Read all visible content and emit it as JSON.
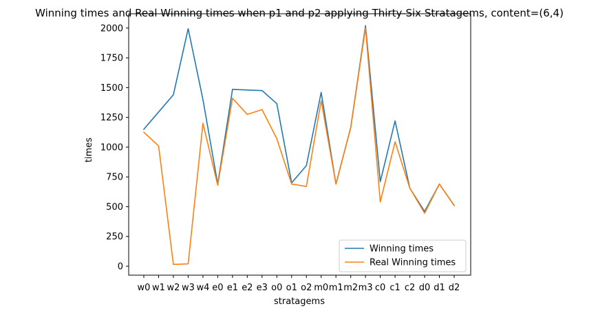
{
  "chart_data": {
    "type": "line",
    "title": "Winning times and Real Winning times when p1 and p2 applying Thirty-Six Stratagems, content=(6,4)",
    "xlabel": "stratagems",
    "ylabel": "times",
    "categories": [
      "w0",
      "w1",
      "w2",
      "w3",
      "w4",
      "e0",
      "e1",
      "e2",
      "e3",
      "o0",
      "o1",
      "o2",
      "m0",
      "m1",
      "m2",
      "m3",
      "c0",
      "c1",
      "c2",
      "d0",
      "d1",
      "d2"
    ],
    "yticks": [
      "0",
      "250",
      "500",
      "750",
      "1000",
      "1250",
      "1500",
      "1750",
      "2000"
    ],
    "ylim": [
      -75,
      2120
    ],
    "grid": false,
    "legend_position": "lower-right",
    "series": [
      {
        "name": "Winning times",
        "color": "#1f77b4",
        "values": [
          1150,
          1295,
          1440,
          1995,
          1400,
          690,
          1485,
          1480,
          1475,
          1365,
          700,
          845,
          1460,
          690,
          1165,
          2020,
          710,
          1220,
          655,
          460,
          690,
          510
        ]
      },
      {
        "name": "Real Winning times",
        "color": "#ff7f0e",
        "values": [
          1125,
          1010,
          15,
          20,
          1200,
          680,
          1410,
          1275,
          1315,
          1070,
          690,
          670,
          1390,
          690,
          1165,
          2000,
          540,
          1045,
          655,
          445,
          690,
          510
        ]
      }
    ]
  }
}
